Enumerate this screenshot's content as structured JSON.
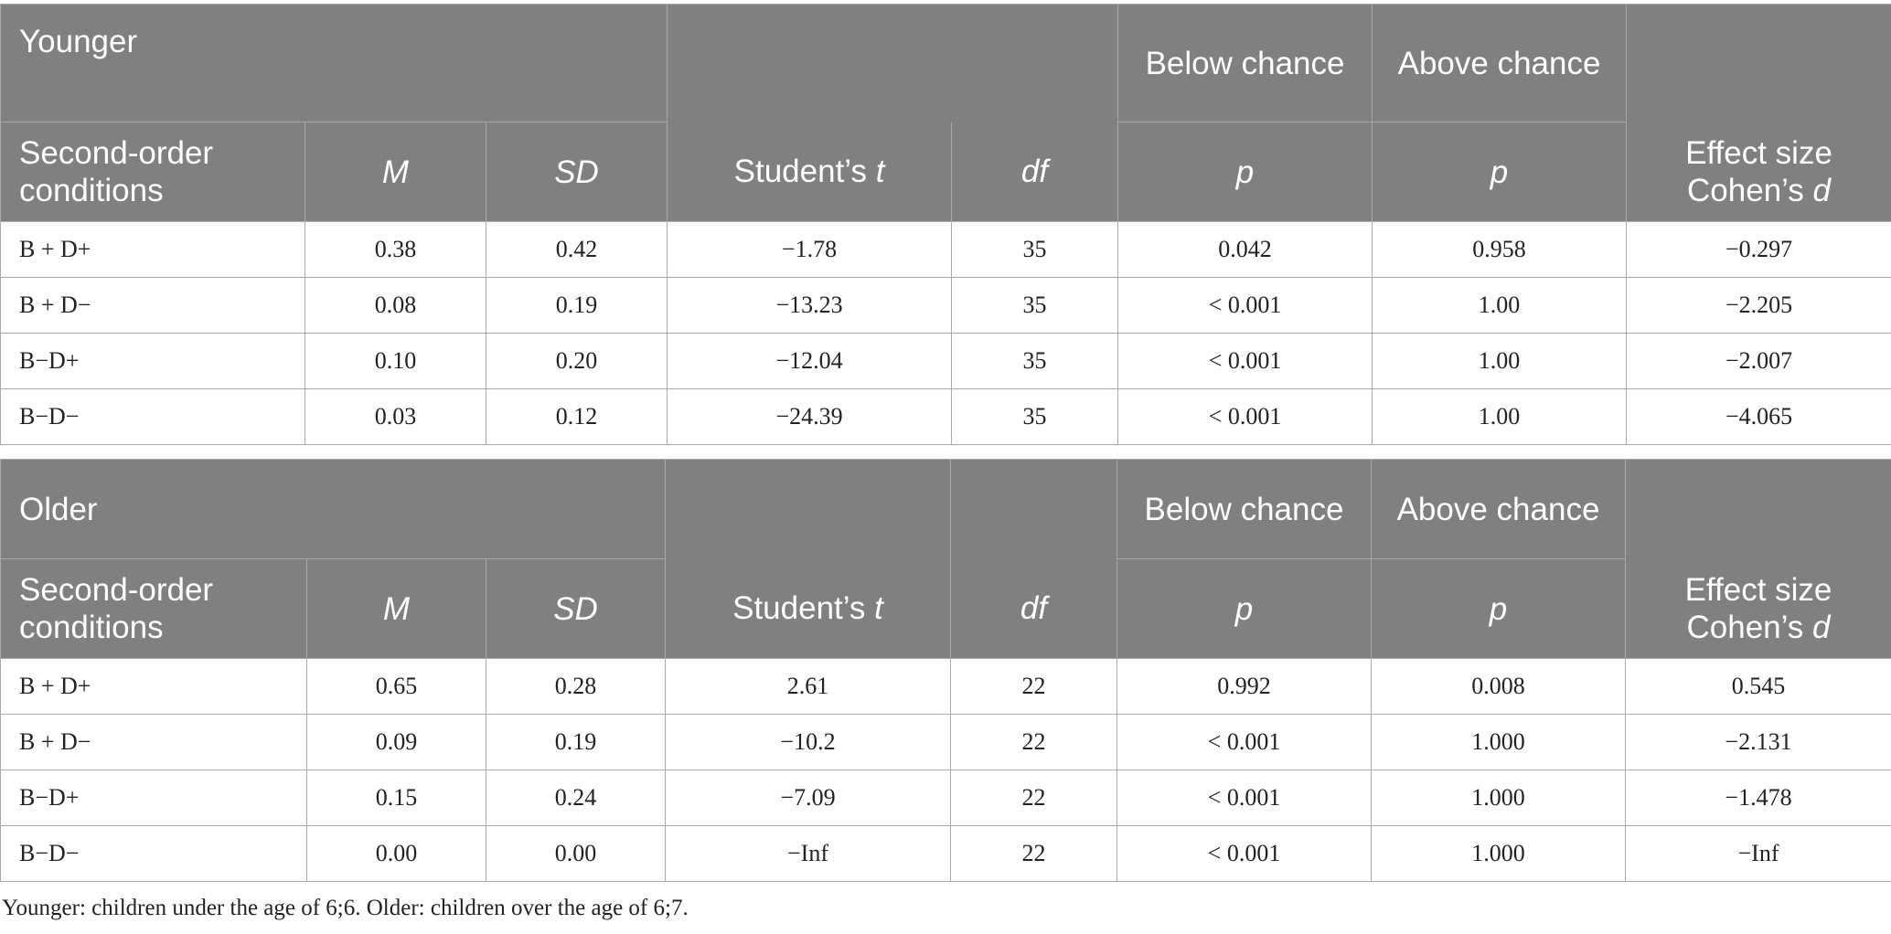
{
  "columns": {
    "below_chance": "Below chance",
    "above_chance": "Above chance",
    "conditions": "Second-order conditions",
    "m": "M",
    "sd": "SD",
    "t_prefix": "Student’s",
    "t_var": "t",
    "df": "df",
    "p1": "p",
    "p2": "p",
    "effect_prefix": "Effect size",
    "effect_line2": "Cohen’s",
    "effect_var": "d"
  },
  "younger": {
    "group_label": "Younger",
    "rows": [
      [
        "B + D+",
        "0.38",
        "0.42",
        "−1.78",
        "35",
        "0.042",
        "0.958",
        "−0.297"
      ],
      [
        "B + D−",
        "0.08",
        "0.19",
        "−13.23",
        "35",
        "< 0.001",
        "1.00",
        "−2.205"
      ],
      [
        "B−D+",
        "0.10",
        "0.20",
        "−12.04",
        "35",
        "< 0.001",
        "1.00",
        "−2.007"
      ],
      [
        "B−D−",
        "0.03",
        "0.12",
        "−24.39",
        "35",
        "< 0.001",
        "1.00",
        "−4.065"
      ]
    ]
  },
  "older": {
    "group_label": "Older",
    "rows": [
      [
        "B + D+",
        "0.65",
        "0.28",
        "2.61",
        "22",
        "0.992",
        "0.008",
        "0.545"
      ],
      [
        "B + D−",
        "0.09",
        "0.19",
        "−10.2",
        "22",
        "< 0.001",
        "1.000",
        "−2.131"
      ],
      [
        "B−D+",
        "0.15",
        "0.24",
        "−7.09",
        "22",
        "< 0.001",
        "1.000",
        "−1.478"
      ],
      [
        "B−D−",
        "0.00",
        "0.00",
        "−Inf",
        "22",
        "< 0.001",
        "1.000",
        "−Inf"
      ]
    ]
  },
  "footnote": "Younger: children under the age of 6;6. Older: children over the age of 6;7."
}
